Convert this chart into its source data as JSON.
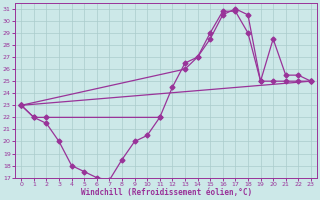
{
  "xlabel": "Windchill (Refroidissement éolien,°C)",
  "bg_color": "#cce8e8",
  "line_color": "#993399",
  "grid_color": "#aacccc",
  "xlim": [
    -0.5,
    23.5
  ],
  "ylim": [
    17,
    31.5
  ],
  "xticks": [
    0,
    1,
    2,
    3,
    4,
    5,
    6,
    7,
    8,
    9,
    10,
    11,
    12,
    13,
    14,
    15,
    16,
    17,
    18,
    19,
    20,
    21,
    22,
    23
  ],
  "yticks": [
    17,
    18,
    19,
    20,
    21,
    22,
    23,
    24,
    25,
    26,
    27,
    28,
    29,
    30,
    31
  ],
  "curve1_x": [
    0,
    1,
    2,
    3,
    4,
    5,
    6,
    7,
    8,
    9,
    10,
    11
  ],
  "curve1_y": [
    23.0,
    22.0,
    21.5,
    20.0,
    18.0,
    17.5,
    17.0,
    16.8,
    18.5,
    20.0,
    20.5,
    22.0
  ],
  "curve2_x": [
    0,
    1,
    2,
    11,
    12,
    13,
    14,
    15,
    16,
    17,
    18,
    19,
    20,
    21,
    22,
    23
  ],
  "curve2_y": [
    23.0,
    22.0,
    22.0,
    22.0,
    24.5,
    26.5,
    27.0,
    29.0,
    30.8,
    30.8,
    29.0,
    25.0,
    28.5,
    25.5,
    25.5,
    25.0
  ],
  "curve3_x": [
    0,
    13,
    14,
    15,
    16,
    17,
    18,
    19,
    20,
    21,
    22,
    23
  ],
  "curve3_y": [
    23.0,
    26.0,
    27.0,
    28.5,
    30.5,
    31.0,
    30.5,
    25.0,
    25.0,
    25.0,
    25.0,
    25.0
  ],
  "curve4_x": [
    0,
    23
  ],
  "curve4_y": [
    23.0,
    25.0
  ]
}
